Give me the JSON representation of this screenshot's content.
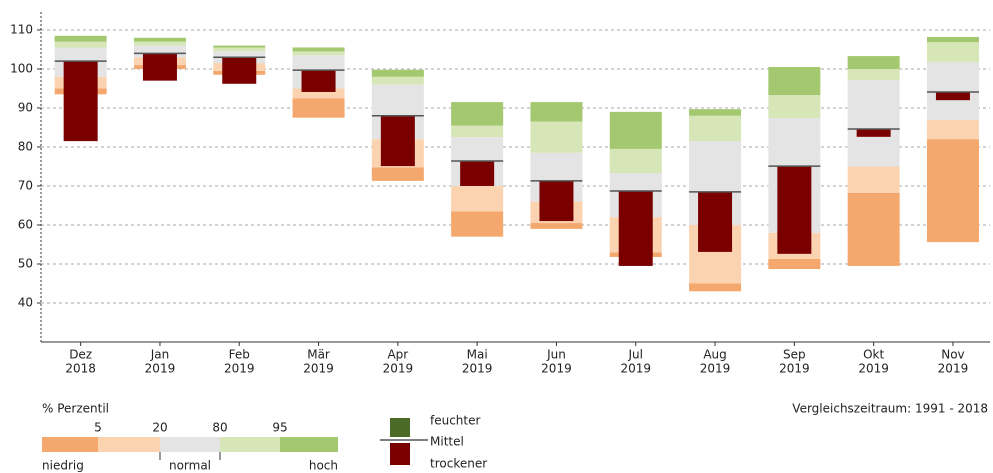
{
  "chart_data": {
    "type": "percentile_bands",
    "categories": [
      [
        "Dez",
        "2018"
      ],
      [
        "Jan",
        "2019"
      ],
      [
        "Feb",
        "2019"
      ],
      [
        "Mär",
        "2019"
      ],
      [
        "Apr",
        "2019"
      ],
      [
        "Mai",
        "2019"
      ],
      [
        "Jun",
        "2019"
      ],
      [
        "Jul",
        "2019"
      ],
      [
        "Aug",
        "2019"
      ],
      [
        "Sep",
        "2019"
      ],
      [
        "Okt",
        "2019"
      ],
      [
        "Nov",
        "2019"
      ]
    ],
    "min": [
      93.5,
      100,
      98.5,
      87.5,
      71.3,
      57,
      59,
      51.8,
      43,
      48.7,
      49.5,
      55.6
    ],
    "p5": [
      95,
      101,
      99.5,
      92.5,
      74.8,
      63.5,
      60.5,
      53,
      45,
      51.3,
      68.2,
      82
    ],
    "p20": [
      98,
      103,
      101.5,
      95,
      82,
      70,
      66,
      62,
      60,
      58,
      75,
      86.9
    ],
    "p80": [
      105.5,
      106,
      104.5,
      103.5,
      96,
      82.5,
      78.5,
      73.3,
      81.5,
      87.4,
      97.2,
      101.8
    ],
    "p95": [
      107,
      107,
      105.5,
      104.5,
      98,
      85.5,
      86.5,
      79.5,
      88,
      93.3,
      100,
      106.9
    ],
    "max": [
      108.5,
      108,
      106,
      105.5,
      99.8,
      91.5,
      91.5,
      89,
      89.7,
      100.5,
      103.3,
      108.2
    ],
    "mean": [
      102,
      104,
      103,
      99.7,
      88,
      76.4,
      71.3,
      68.7,
      68.5,
      75.1,
      84.6,
      94.1
    ],
    "current": [
      81.5,
      97,
      96.2,
      94.1,
      75.1,
      70,
      61,
      49.5,
      53.1,
      52.6,
      82.6,
      92
    ],
    "band_colors": [
      "#f5a86e",
      "#fbd3b0",
      "#e4e4e4",
      "#d6e6b6",
      "#a3c86f"
    ],
    "mean_color": "#555555",
    "wet_color": "#4b6a25",
    "dry_color": "#7a0000",
    "ylim": [
      30,
      114.6
    ],
    "yticks": [
      40,
      50,
      60,
      70,
      80,
      90,
      100,
      110
    ],
    "grid": true,
    "legend": {
      "title": "% Perzentil",
      "ticks": [
        5,
        20,
        80,
        95
      ],
      "labels": [
        "niedrig",
        "normal",
        "hoch"
      ],
      "wet": "feuchter",
      "mean": "Mittel",
      "dry": "trockener"
    },
    "note": "Vergleichszeitraum: 1991 - 2018"
  }
}
